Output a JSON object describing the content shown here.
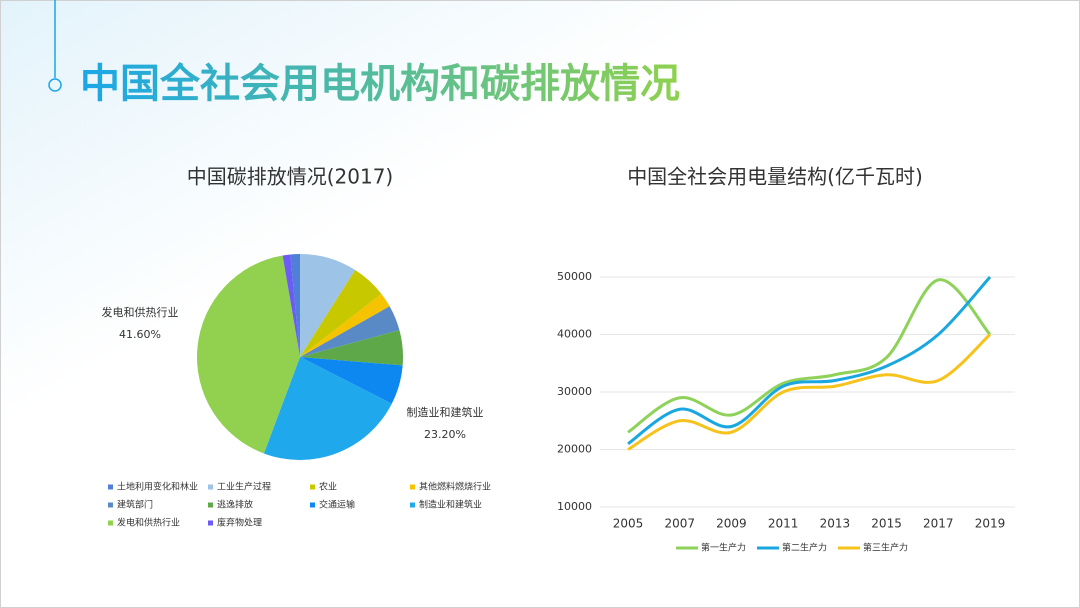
{
  "title": "中国全社会用电机构和碳排放情况",
  "chart_data": [
    {
      "type": "pie",
      "title": "中国碳排放情况(2017)",
      "categories": [
        "土地利用变化和林业",
        "工业生产过程",
        "农业",
        "其他燃料燃烧行业",
        "建筑部门",
        "逃逸排放",
        "交通运输",
        "制造业和建筑业",
        "发电和供热行业",
        "废弃物处理"
      ],
      "values": [
        1.5,
        9.0,
        5.5,
        2.3,
        4.0,
        5.5,
        6.2,
        23.2,
        41.6,
        1.2
      ],
      "value_labels": [
        null,
        null,
        null,
        null,
        null,
        null,
        null,
        "23.20%",
        "41.60%",
        null
      ],
      "colors": [
        "#4f7fd6",
        "#9dc3e6",
        "#c8c800",
        "#f5c300",
        "#5a8ac6",
        "#5ea84a",
        "#0d88f0",
        "#20a8ec",
        "#92d050",
        "#6a5cf5"
      ],
      "legend": "bottom"
    },
    {
      "type": "line",
      "title": "中国全社会用电量结构(亿千瓦时)",
      "x": [
        2005,
        2007,
        2009,
        2011,
        2013,
        2015,
        2017,
        2019
      ],
      "xlim": [
        2005,
        2019
      ],
      "xticks": [
        2005,
        2007,
        2009,
        2011,
        2013,
        2015,
        2017,
        2019
      ],
      "ylim": [
        10000,
        50000
      ],
      "yticks": [
        10000,
        20000,
        30000,
        40000,
        50000
      ],
      "grid": true,
      "legend": "bottom",
      "series": [
        {
          "name": "第一生产力",
          "color": "#8ed25a",
          "values": [
            23000,
            29000,
            26000,
            31500,
            33000,
            36000,
            49500,
            40000
          ]
        },
        {
          "name": "第二生产力",
          "color": "#1aa7e0",
          "values": [
            21000,
            27000,
            24000,
            31000,
            32000,
            34500,
            40000,
            50000
          ]
        },
        {
          "name": "第三生产力",
          "color": "#f5c31c",
          "values": [
            20000,
            25000,
            23000,
            30000,
            31000,
            33000,
            32000,
            40000
          ]
        }
      ]
    }
  ]
}
